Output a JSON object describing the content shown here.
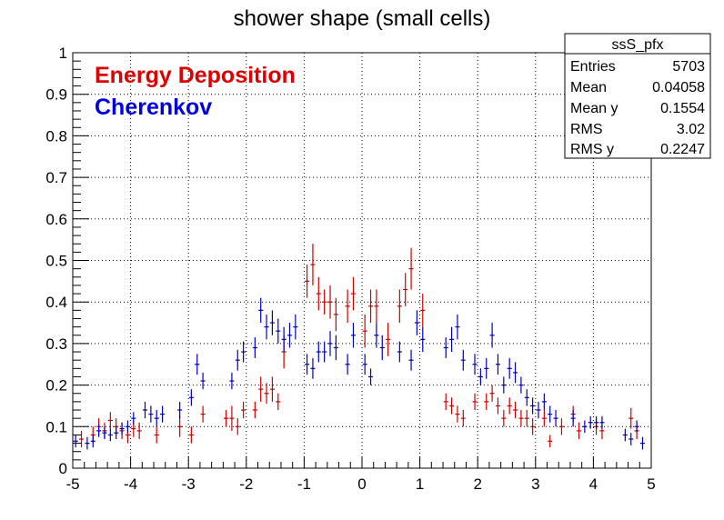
{
  "chart_data": {
    "type": "scatter",
    "title": "shower shape (small cells)",
    "xlabel": "",
    "ylabel": "",
    "xlim": [
      -5,
      5
    ],
    "ylim": [
      0,
      1
    ],
    "x_ticks": [
      "-5",
      "-4",
      "-3",
      "-2",
      "-1",
      "0",
      "1",
      "2",
      "3",
      "4",
      "5"
    ],
    "y_ticks": [
      "0",
      "0.1",
      "0.2",
      "0.3",
      "0.4",
      "0.5",
      "0.6",
      "0.7",
      "0.8",
      "0.9",
      "1"
    ],
    "grid": true,
    "legend_placement": "top-left",
    "series": [
      {
        "name": "Energy Deposition",
        "color": "#cc0000",
        "points": [
          {
            "x": -4.85,
            "y": 0.07,
            "e": 0.02
          },
          {
            "x": -4.65,
            "y": 0.08,
            "e": 0.02
          },
          {
            "x": -4.55,
            "y": 0.1,
            "e": 0.02
          },
          {
            "x": -4.45,
            "y": 0.09,
            "e": 0.02
          },
          {
            "x": -4.35,
            "y": 0.115,
            "e": 0.02
          },
          {
            "x": -4.25,
            "y": 0.1,
            "e": 0.02
          },
          {
            "x": -4.15,
            "y": 0.09,
            "e": 0.02
          },
          {
            "x": -4.05,
            "y": 0.08,
            "e": 0.02
          },
          {
            "x": -3.95,
            "y": 0.095,
            "e": 0.02
          },
          {
            "x": -3.85,
            "y": 0.09,
            "e": 0.02
          },
          {
            "x": -3.55,
            "y": 0.08,
            "e": 0.02
          },
          {
            "x": -3.15,
            "y": 0.1,
            "e": 0.025
          },
          {
            "x": -2.95,
            "y": 0.08,
            "e": 0.02
          },
          {
            "x": -2.75,
            "y": 0.13,
            "e": 0.02
          },
          {
            "x": -2.35,
            "y": 0.12,
            "e": 0.02
          },
          {
            "x": -2.25,
            "y": 0.12,
            "e": 0.03
          },
          {
            "x": -2.15,
            "y": 0.1,
            "e": 0.02
          },
          {
            "x": -2.05,
            "y": 0.14,
            "e": 0.02
          },
          {
            "x": -1.85,
            "y": 0.14,
            "e": 0.02
          },
          {
            "x": -1.75,
            "y": 0.19,
            "e": 0.03
          },
          {
            "x": -1.65,
            "y": 0.18,
            "e": 0.025
          },
          {
            "x": -1.55,
            "y": 0.19,
            "e": 0.03
          },
          {
            "x": -1.45,
            "y": 0.16,
            "e": 0.02
          },
          {
            "x": -1.35,
            "y": 0.28,
            "e": 0.04
          },
          {
            "x": -0.95,
            "y": 0.45,
            "e": 0.04
          },
          {
            "x": -0.85,
            "y": 0.49,
            "e": 0.05
          },
          {
            "x": -0.75,
            "y": 0.42,
            "e": 0.04
          },
          {
            "x": -0.65,
            "y": 0.4,
            "e": 0.03
          },
          {
            "x": -0.55,
            "y": 0.4,
            "e": 0.04
          },
          {
            "x": -0.45,
            "y": 0.37,
            "e": 0.04
          },
          {
            "x": -0.25,
            "y": 0.39,
            "e": 0.04
          },
          {
            "x": -0.15,
            "y": 0.42,
            "e": 0.04
          },
          {
            "x": 0.05,
            "y": 0.33,
            "e": 0.04
          },
          {
            "x": 0.15,
            "y": 0.39,
            "e": 0.04
          },
          {
            "x": 0.25,
            "y": 0.39,
            "e": 0.04
          },
          {
            "x": 0.45,
            "y": 0.31,
            "e": 0.04
          },
          {
            "x": 0.65,
            "y": 0.39,
            "e": 0.04
          },
          {
            "x": 0.75,
            "y": 0.43,
            "e": 0.04
          },
          {
            "x": 0.85,
            "y": 0.48,
            "e": 0.05
          },
          {
            "x": 1.05,
            "y": 0.38,
            "e": 0.04
          },
          {
            "x": 1.45,
            "y": 0.16,
            "e": 0.02
          },
          {
            "x": 1.55,
            "y": 0.15,
            "e": 0.02
          },
          {
            "x": 1.65,
            "y": 0.13,
            "e": 0.02
          },
          {
            "x": 1.75,
            "y": 0.12,
            "e": 0.02
          },
          {
            "x": 1.95,
            "y": 0.16,
            "e": 0.02
          },
          {
            "x": 2.15,
            "y": 0.16,
            "e": 0.02
          },
          {
            "x": 2.25,
            "y": 0.18,
            "e": 0.02
          },
          {
            "x": 2.35,
            "y": 0.15,
            "e": 0.02
          },
          {
            "x": 2.45,
            "y": 0.12,
            "e": 0.02
          },
          {
            "x": 2.55,
            "y": 0.15,
            "e": 0.02
          },
          {
            "x": 2.65,
            "y": 0.14,
            "e": 0.02
          },
          {
            "x": 2.75,
            "y": 0.12,
            "e": 0.02
          },
          {
            "x": 2.85,
            "y": 0.12,
            "e": 0.02
          },
          {
            "x": 2.95,
            "y": 0.1,
            "e": 0.02
          },
          {
            "x": 3.15,
            "y": 0.12,
            "e": 0.02
          },
          {
            "x": 3.25,
            "y": 0.065,
            "e": 0.015
          },
          {
            "x": 3.45,
            "y": 0.1,
            "e": 0.02
          },
          {
            "x": 3.65,
            "y": 0.13,
            "e": 0.02
          },
          {
            "x": 3.75,
            "y": 0.09,
            "e": 0.02
          },
          {
            "x": 4.05,
            "y": 0.1,
            "e": 0.02
          },
          {
            "x": 4.15,
            "y": 0.09,
            "e": 0.02
          },
          {
            "x": 4.65,
            "y": 0.12,
            "e": 0.025
          },
          {
            "x": 4.75,
            "y": 0.09,
            "e": 0.02
          }
        ]
      },
      {
        "name": "Cherenkov",
        "color": "#0000bb",
        "points": [
          {
            "x": -4.95,
            "y": 0.065,
            "e": 0.015
          },
          {
            "x": -4.75,
            "y": 0.06,
            "e": 0.015
          },
          {
            "x": -4.65,
            "y": 0.065,
            "e": 0.015
          },
          {
            "x": -4.55,
            "y": 0.09,
            "e": 0.015
          },
          {
            "x": -4.45,
            "y": 0.085,
            "e": 0.015
          },
          {
            "x": -4.35,
            "y": 0.08,
            "e": 0.015
          },
          {
            "x": -4.25,
            "y": 0.085,
            "e": 0.015
          },
          {
            "x": -4.15,
            "y": 0.095,
            "e": 0.015
          },
          {
            "x": -4.05,
            "y": 0.1,
            "e": 0.015
          },
          {
            "x": -3.95,
            "y": 0.12,
            "e": 0.015
          },
          {
            "x": -3.75,
            "y": 0.14,
            "e": 0.02
          },
          {
            "x": -3.65,
            "y": 0.13,
            "e": 0.02
          },
          {
            "x": -3.55,
            "y": 0.12,
            "e": 0.02
          },
          {
            "x": -3.45,
            "y": 0.13,
            "e": 0.02
          },
          {
            "x": -3.15,
            "y": 0.14,
            "e": 0.02
          },
          {
            "x": -2.95,
            "y": 0.17,
            "e": 0.02
          },
          {
            "x": -2.85,
            "y": 0.25,
            "e": 0.025
          },
          {
            "x": -2.75,
            "y": 0.21,
            "e": 0.02
          },
          {
            "x": -2.25,
            "y": 0.21,
            "e": 0.02
          },
          {
            "x": -2.15,
            "y": 0.26,
            "e": 0.025
          },
          {
            "x": -2.05,
            "y": 0.28,
            "e": 0.025
          },
          {
            "x": -1.85,
            "y": 0.29,
            "e": 0.025
          },
          {
            "x": -1.75,
            "y": 0.38,
            "e": 0.03
          },
          {
            "x": -1.65,
            "y": 0.34,
            "e": 0.03
          },
          {
            "x": -1.55,
            "y": 0.35,
            "e": 0.03
          },
          {
            "x": -1.45,
            "y": 0.33,
            "e": 0.03
          },
          {
            "x": -1.35,
            "y": 0.31,
            "e": 0.03
          },
          {
            "x": -1.25,
            "y": 0.32,
            "e": 0.03
          },
          {
            "x": -1.15,
            "y": 0.34,
            "e": 0.03
          },
          {
            "x": -0.95,
            "y": 0.25,
            "e": 0.025
          },
          {
            "x": -0.85,
            "y": 0.24,
            "e": 0.025
          },
          {
            "x": -0.75,
            "y": 0.28,
            "e": 0.025
          },
          {
            "x": -0.65,
            "y": 0.28,
            "e": 0.025
          },
          {
            "x": -0.55,
            "y": 0.3,
            "e": 0.03
          },
          {
            "x": -0.45,
            "y": 0.29,
            "e": 0.03
          },
          {
            "x": -0.25,
            "y": 0.25,
            "e": 0.025
          },
          {
            "x": -0.15,
            "y": 0.32,
            "e": 0.03
          },
          {
            "x": 0.05,
            "y": 0.25,
            "e": 0.025
          },
          {
            "x": 0.15,
            "y": 0.22,
            "e": 0.02
          },
          {
            "x": 0.25,
            "y": 0.32,
            "e": 0.03
          },
          {
            "x": 0.35,
            "y": 0.29,
            "e": 0.03
          },
          {
            "x": 0.65,
            "y": 0.28,
            "e": 0.025
          },
          {
            "x": 0.85,
            "y": 0.26,
            "e": 0.025
          },
          {
            "x": 0.95,
            "y": 0.35,
            "e": 0.03
          },
          {
            "x": 1.05,
            "y": 0.31,
            "e": 0.03
          },
          {
            "x": 1.45,
            "y": 0.29,
            "e": 0.025
          },
          {
            "x": 1.55,
            "y": 0.31,
            "e": 0.03
          },
          {
            "x": 1.65,
            "y": 0.34,
            "e": 0.03
          },
          {
            "x": 1.75,
            "y": 0.26,
            "e": 0.025
          },
          {
            "x": 1.95,
            "y": 0.25,
            "e": 0.025
          },
          {
            "x": 2.05,
            "y": 0.22,
            "e": 0.02
          },
          {
            "x": 2.15,
            "y": 0.24,
            "e": 0.025
          },
          {
            "x": 2.25,
            "y": 0.32,
            "e": 0.03
          },
          {
            "x": 2.35,
            "y": 0.25,
            "e": 0.025
          },
          {
            "x": 2.45,
            "y": 0.2,
            "e": 0.02
          },
          {
            "x": 2.55,
            "y": 0.24,
            "e": 0.025
          },
          {
            "x": 2.65,
            "y": 0.23,
            "e": 0.025
          },
          {
            "x": 2.75,
            "y": 0.2,
            "e": 0.02
          },
          {
            "x": 2.85,
            "y": 0.17,
            "e": 0.02
          },
          {
            "x": 2.95,
            "y": 0.15,
            "e": 0.02
          },
          {
            "x": 3.05,
            "y": 0.14,
            "e": 0.02
          },
          {
            "x": 3.15,
            "y": 0.16,
            "e": 0.02
          },
          {
            "x": 3.25,
            "y": 0.13,
            "e": 0.02
          },
          {
            "x": 3.35,
            "y": 0.12,
            "e": 0.02
          },
          {
            "x": 3.65,
            "y": 0.12,
            "e": 0.02
          },
          {
            "x": 3.85,
            "y": 0.1,
            "e": 0.015
          },
          {
            "x": 3.95,
            "y": 0.11,
            "e": 0.015
          },
          {
            "x": 4.05,
            "y": 0.11,
            "e": 0.015
          },
          {
            "x": 4.15,
            "y": 0.11,
            "e": 0.015
          },
          {
            "x": 4.55,
            "y": 0.08,
            "e": 0.015
          },
          {
            "x": 4.65,
            "y": 0.07,
            "e": 0.015
          },
          {
            "x": 4.75,
            "y": 0.1,
            "e": 0.015
          },
          {
            "x": 4.85,
            "y": 0.06,
            "e": 0.015
          }
        ]
      }
    ],
    "legend": [
      {
        "label": "Energy Deposition",
        "color": "#dd0000"
      },
      {
        "label": "Cherenkov",
        "color": "#0000dd"
      }
    ],
    "stats_box": {
      "title": "ssS_pfx",
      "rows": [
        {
          "label": "Entries",
          "value": "5703"
        },
        {
          "label": "Mean",
          "value": "0.04058"
        },
        {
          "label": "Mean y",
          "value": "0.1554"
        },
        {
          "label": "RMS",
          "value": "3.02"
        },
        {
          "label": "RMS y",
          "value": "0.2247"
        }
      ]
    }
  }
}
